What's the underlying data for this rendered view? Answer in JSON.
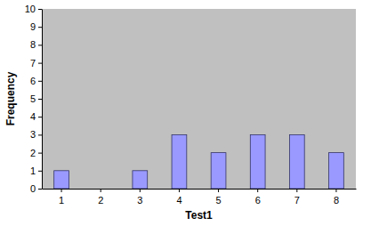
{
  "chart_data": {
    "type": "bar",
    "x_label": "Test1",
    "y_label": "Frequency",
    "categories": [
      "1",
      "2",
      "3",
      "4",
      "5",
      "6",
      "7",
      "8"
    ],
    "values": [
      1,
      0,
      1,
      3,
      2,
      3,
      3,
      2
    ],
    "color": "#9999ff",
    "ylim": [
      0,
      10
    ],
    "yticks": [
      0,
      1,
      2,
      3,
      4,
      5,
      6,
      7,
      8,
      9,
      10
    ],
    "grid": false
  }
}
